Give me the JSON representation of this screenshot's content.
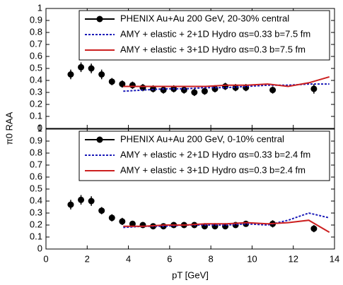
{
  "chart_data": [
    {
      "type": "line",
      "ylabel": "π0 RAA",
      "xlim": [
        0,
        14
      ],
      "xticks": [
        0,
        2,
        4,
        6,
        8,
        10,
        12,
        14
      ],
      "ylim": [
        0,
        1
      ],
      "yticks": [
        0,
        0.1,
        0.2,
        0.3,
        0.4,
        0.5,
        0.6,
        0.7,
        0.8,
        0.9,
        1
      ],
      "series": [
        {
          "name": "PHENIX Au+Au 200 GeV, 20-30% central",
          "color": "#000000",
          "marker": "circle",
          "x": [
            1.2,
            1.7,
            2.2,
            2.7,
            3.2,
            3.7,
            4.2,
            4.7,
            5.2,
            5.7,
            6.2,
            6.7,
            7.2,
            7.7,
            8.2,
            8.7,
            9.2,
            9.7,
            11,
            13
          ],
          "values": [
            0.45,
            0.51,
            0.5,
            0.45,
            0.39,
            0.37,
            0.36,
            0.34,
            0.33,
            0.32,
            0.33,
            0.32,
            0.3,
            0.31,
            0.33,
            0.35,
            0.34,
            0.34,
            0.32,
            0.33
          ],
          "errors": [
            0.04,
            0.04,
            0.04,
            0.04,
            0.03,
            0.03,
            0.03,
            0.03,
            0.03,
            0.03,
            0.03,
            0.03,
            0.03,
            0.03,
            0.03,
            0.03,
            0.03,
            0.03,
            0.03,
            0.04
          ]
        },
        {
          "name": "AMY + elastic + 2+1D Hydro αs=0.33 b=7.5 fm",
          "color": "#1a1ab8",
          "dash": true,
          "x": [
            3.75,
            4.75,
            5.75,
            6.75,
            7.75,
            8.75,
            9.75,
            10.75,
            11.75,
            12.75,
            13.75
          ],
          "values": [
            0.31,
            0.32,
            0.33,
            0.33,
            0.34,
            0.34,
            0.35,
            0.36,
            0.36,
            0.37,
            0.37
          ]
        },
        {
          "name": "AMY + elastic + 3+1D Hydro αs=0.3 b=7.5 fm",
          "color": "#cc2020",
          "dash": false,
          "x": [
            3.75,
            4.75,
            5.75,
            6.75,
            7.75,
            8.75,
            9.75,
            10.75,
            11.75,
            12.75,
            13.75
          ],
          "values": [
            0.35,
            0.35,
            0.35,
            0.35,
            0.35,
            0.36,
            0.36,
            0.37,
            0.35,
            0.38,
            0.43
          ]
        }
      ]
    },
    {
      "type": "line",
      "xlabel": "pT [GeV]",
      "xlim": [
        0,
        14
      ],
      "xticks": [
        0,
        2,
        4,
        6,
        8,
        10,
        12,
        14
      ],
      "ylim": [
        0,
        1
      ],
      "yticks": [
        0,
        0.1,
        0.2,
        0.3,
        0.4,
        0.5,
        0.6,
        0.7,
        0.8,
        0.9,
        1
      ],
      "series": [
        {
          "name": "PHENIX Au+Au 200 GeV, 0-10% central",
          "color": "#000000",
          "marker": "circle",
          "x": [
            1.2,
            1.7,
            2.2,
            2.7,
            3.2,
            3.7,
            4.2,
            4.7,
            5.2,
            5.7,
            6.2,
            6.7,
            7.2,
            7.7,
            8.2,
            8.7,
            9.2,
            9.7,
            11,
            13
          ],
          "values": [
            0.37,
            0.41,
            0.4,
            0.32,
            0.26,
            0.23,
            0.21,
            0.2,
            0.19,
            0.19,
            0.2,
            0.2,
            0.2,
            0.19,
            0.19,
            0.19,
            0.2,
            0.21,
            0.21,
            0.17
          ],
          "errors": [
            0.04,
            0.04,
            0.04,
            0.03,
            0.03,
            0.03,
            0.02,
            0.02,
            0.02,
            0.02,
            0.02,
            0.02,
            0.02,
            0.02,
            0.02,
            0.02,
            0.02,
            0.02,
            0.03,
            0.03
          ]
        },
        {
          "name": "AMY + elastic + 2+1D Hydro αs=0.33 b=2.4 fm",
          "color": "#1a1ab8",
          "dash": true,
          "x": [
            3.75,
            4.75,
            5.75,
            6.75,
            7.75,
            8.75,
            9.75,
            10.75,
            11.75,
            12.75,
            13.75
          ],
          "values": [
            0.18,
            0.19,
            0.19,
            0.2,
            0.2,
            0.2,
            0.21,
            0.2,
            0.24,
            0.3,
            0.26
          ]
        },
        {
          "name": "AMY + elastic + 3+1D Hydro αs=0.3 b=2.4 fm",
          "color": "#cc2020",
          "dash": false,
          "x": [
            3.75,
            4.75,
            5.75,
            6.75,
            7.75,
            8.75,
            9.75,
            10.75,
            11.75,
            12.75,
            13.75
          ],
          "values": [
            0.19,
            0.19,
            0.2,
            0.2,
            0.21,
            0.21,
            0.22,
            0.21,
            0.22,
            0.24,
            0.14
          ]
        }
      ]
    }
  ]
}
